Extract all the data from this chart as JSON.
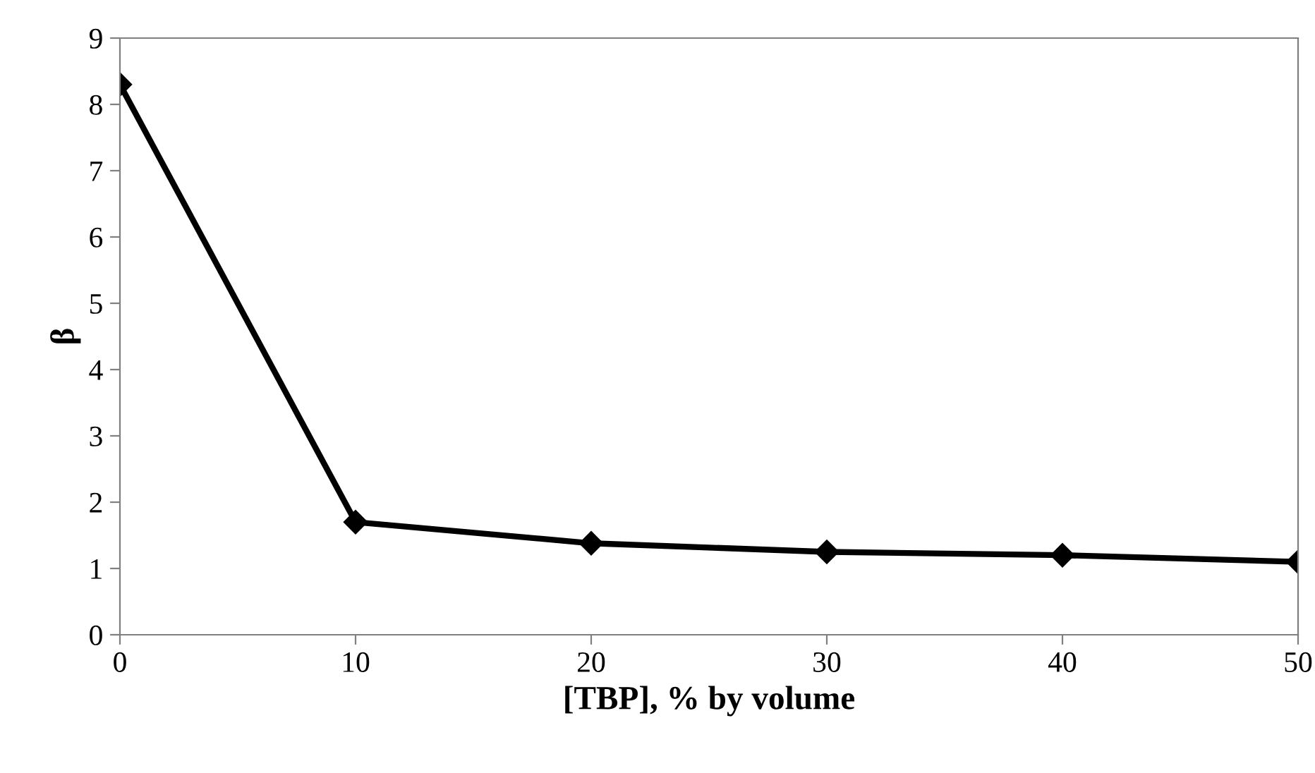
{
  "chart_data": {
    "type": "line",
    "xlabel": "[TBP], % by volume",
    "ylabel": "β",
    "x": [
      0,
      10,
      20,
      30,
      40,
      50
    ],
    "series": [
      {
        "color": "#000000",
        "values": [
          8.3,
          1.7,
          1.38,
          1.25,
          1.2,
          1.1
        ]
      }
    ],
    "xlim": [
      0,
      50
    ],
    "xticks": [
      0,
      10,
      20,
      30,
      40,
      50
    ],
    "ylim": [
      0,
      9
    ],
    "yticks": [
      0,
      1,
      2,
      3,
      4,
      5,
      6,
      7,
      8,
      9
    ],
    "grid": false,
    "marker": "diamond",
    "line_style": "solid"
  }
}
